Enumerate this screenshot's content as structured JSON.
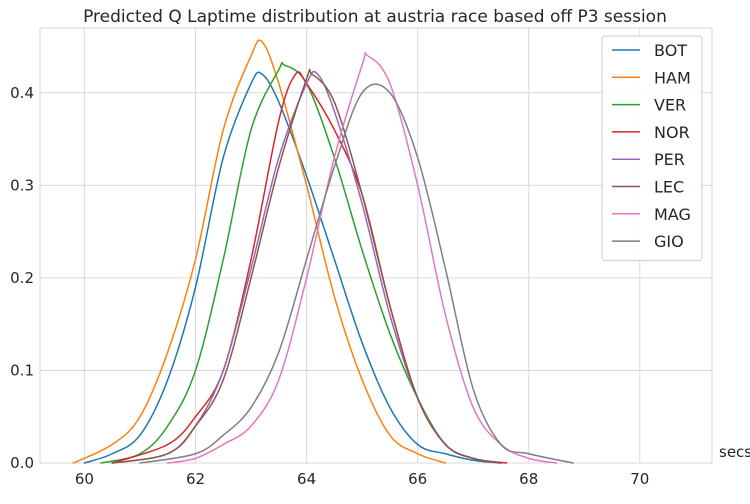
{
  "chart_data": {
    "type": "line",
    "title": "Predicted Q Laptime distribution at austria race based off P3 session",
    "xlabel": "secs",
    "ylabel": "",
    "xlim": [
      59.2,
      71.3
    ],
    "ylim": [
      0,
      0.47
    ],
    "xticks": [
      60,
      62,
      64,
      66,
      68,
      70
    ],
    "yticks": [
      0.0,
      0.1,
      0.2,
      0.3,
      0.4
    ],
    "xtick_labels": [
      "60",
      "62",
      "64",
      "66",
      "68",
      "70"
    ],
    "ytick_labels": [
      "0.0",
      "0.1",
      "0.2",
      "0.3",
      "0.4"
    ],
    "grid": true,
    "legend_position": "top-right",
    "series": [
      {
        "name": "BOT",
        "color": "#1f77b4",
        "x": [
          60.0,
          60.5,
          61.0,
          61.5,
          62.0,
          62.5,
          63.0,
          63.2,
          63.5,
          64.0,
          64.5,
          65.0,
          65.5,
          66.0,
          66.5,
          67.0,
          67.5
        ],
        "y": [
          0.0,
          0.01,
          0.03,
          0.09,
          0.19,
          0.33,
          0.41,
          0.42,
          0.39,
          0.31,
          0.22,
          0.13,
          0.06,
          0.02,
          0.01,
          0.003,
          0.0
        ]
      },
      {
        "name": "HAM",
        "color": "#ff7f0e",
        "x": [
          59.8,
          60.5,
          61.0,
          61.5,
          62.0,
          62.5,
          63.0,
          63.2,
          63.5,
          64.0,
          64.5,
          65.0,
          65.5,
          66.0,
          66.5
        ],
        "y": [
          0.0,
          0.02,
          0.05,
          0.12,
          0.22,
          0.36,
          0.44,
          0.455,
          0.41,
          0.3,
          0.18,
          0.09,
          0.03,
          0.01,
          0.0
        ]
      },
      {
        "name": "VER",
        "color": "#2ca02c",
        "x": [
          60.3,
          61.0,
          61.5,
          62.0,
          62.5,
          63.0,
          63.5,
          63.6,
          64.0,
          64.5,
          65.0,
          65.5,
          66.0,
          66.5,
          67.0,
          67.5
        ],
        "y": [
          0.0,
          0.01,
          0.04,
          0.1,
          0.22,
          0.36,
          0.425,
          0.43,
          0.41,
          0.33,
          0.23,
          0.14,
          0.07,
          0.02,
          0.005,
          0.0
        ]
      },
      {
        "name": "NOR",
        "color": "#d62728",
        "x": [
          60.5,
          61.5,
          62.0,
          62.5,
          63.0,
          63.5,
          63.8,
          64.0,
          64.5,
          65.0,
          65.5,
          66.0,
          66.5,
          67.0,
          67.6
        ],
        "y": [
          0.0,
          0.02,
          0.05,
          0.1,
          0.22,
          0.37,
          0.42,
          0.41,
          0.36,
          0.29,
          0.17,
          0.07,
          0.02,
          0.005,
          0.0
        ]
      },
      {
        "name": "PER",
        "color": "#9467bd",
        "x": [
          60.5,
          61.5,
          62.0,
          62.5,
          63.0,
          63.5,
          64.0,
          64.2,
          64.5,
          65.0,
          65.5,
          66.0,
          66.5,
          67.0,
          67.5
        ],
        "y": [
          0.0,
          0.01,
          0.04,
          0.1,
          0.21,
          0.33,
          0.41,
          0.42,
          0.38,
          0.28,
          0.16,
          0.07,
          0.02,
          0.005,
          0.0
        ]
      },
      {
        "name": "LEC",
        "color": "#8c564b",
        "x": [
          60.5,
          61.5,
          62.0,
          62.5,
          63.0,
          63.5,
          64.0,
          64.1,
          64.5,
          65.0,
          65.5,
          66.0,
          66.5,
          67.0,
          67.5
        ],
        "y": [
          0.0,
          0.01,
          0.04,
          0.09,
          0.2,
          0.32,
          0.415,
          0.42,
          0.39,
          0.29,
          0.17,
          0.07,
          0.02,
          0.005,
          0.0
        ]
      },
      {
        "name": "MAG",
        "color": "#e377c2",
        "x": [
          61.5,
          62.0,
          62.5,
          63.0,
          63.5,
          64.0,
          64.5,
          65.0,
          65.1,
          65.5,
          66.0,
          66.5,
          67.0,
          67.5,
          68.0,
          68.5
        ],
        "y": [
          0.0,
          0.005,
          0.02,
          0.04,
          0.09,
          0.2,
          0.33,
          0.43,
          0.44,
          0.41,
          0.3,
          0.16,
          0.06,
          0.02,
          0.005,
          0.0
        ]
      },
      {
        "name": "GIO",
        "color": "#7f7f7f",
        "x": [
          61.0,
          62.0,
          62.5,
          63.0,
          63.5,
          64.0,
          64.5,
          65.0,
          65.5,
          66.0,
          66.5,
          67.0,
          67.5,
          68.0,
          68.8
        ],
        "y": [
          0.0,
          0.01,
          0.03,
          0.06,
          0.12,
          0.22,
          0.32,
          0.4,
          0.4,
          0.33,
          0.21,
          0.08,
          0.02,
          0.01,
          0.0
        ]
      }
    ]
  }
}
